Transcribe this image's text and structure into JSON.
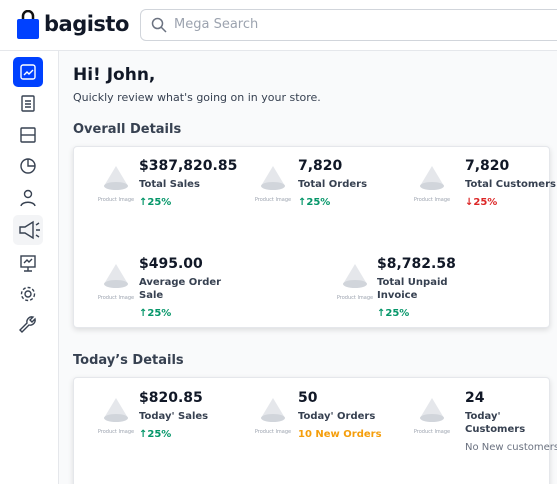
{
  "header": {
    "logo": "bagisto",
    "search_placeholder": "Mega Search"
  },
  "greeting": "Hi! John,",
  "subtitle": "Quickly review what's going on in your store.",
  "placeholder_label": "Product Image",
  "overall": {
    "title": "Overall Details",
    "items": [
      {
        "value": "$387,820.85",
        "label": "Total Sales",
        "change": "25%",
        "trend": "up"
      },
      {
        "value": "7,820",
        "label": "Total Orders",
        "change": "25%",
        "trend": "up"
      },
      {
        "value": "7,820",
        "label": "Total Customers",
        "change": "25%",
        "trend": "down"
      },
      {
        "value": "$495.00",
        "label": "Average Order Sale",
        "change": "25%",
        "trend": "up"
      },
      {
        "value": "$8,782.58",
        "label": "Total Unpaid Invoice",
        "change": "25%",
        "trend": "up"
      }
    ]
  },
  "today": {
    "title": "Today’s Details",
    "items": [
      {
        "value": "$820.85",
        "label": "Today' Sales",
        "change": "25%",
        "trend": "up"
      },
      {
        "value": "50",
        "label": "Today' Orders",
        "note": "10 New Orders",
        "note_color": "#f59e0b"
      },
      {
        "value": "24",
        "label": "Today' Customers",
        "note": "No New customers",
        "note_color": "#6b7280"
      }
    ]
  }
}
